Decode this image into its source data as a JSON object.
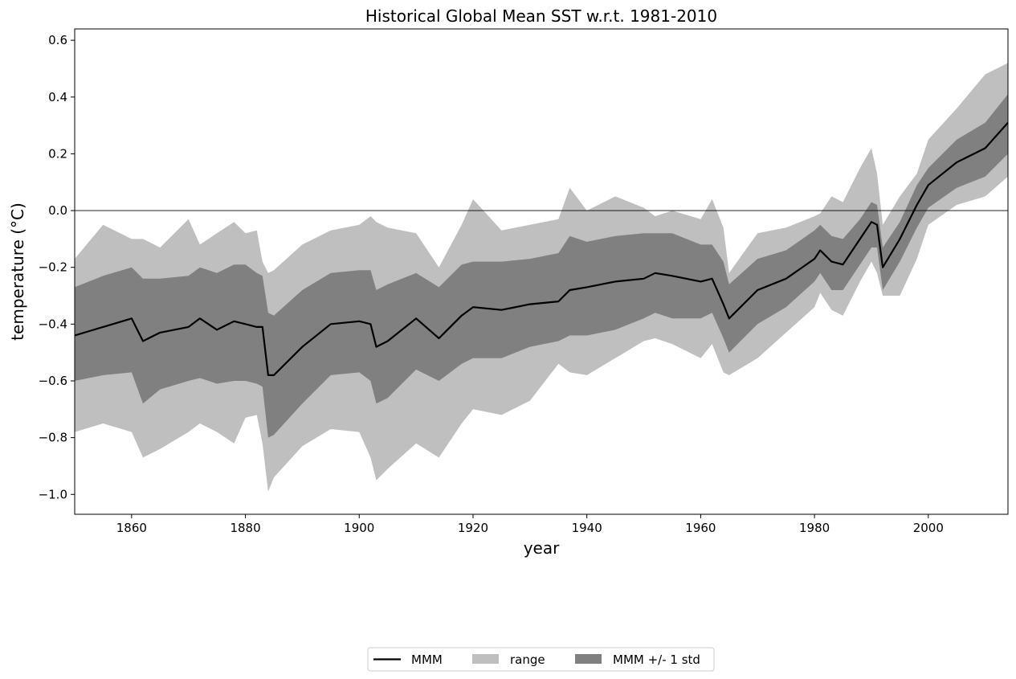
{
  "chart_data": {
    "type": "area",
    "title": "Historical Global Mean SST w.r.t. 1981-2010",
    "xlabel": "year",
    "ylabel": "temperature (°C)",
    "xlim": [
      1850,
      2014
    ],
    "ylim": [
      -1.07,
      0.64
    ],
    "xticks": [
      1860,
      1880,
      1900,
      1920,
      1940,
      1960,
      1980,
      2000
    ],
    "yticks": [
      -1.0,
      -0.8,
      -0.6,
      -0.4,
      -0.2,
      0.0,
      0.2,
      0.4,
      0.6
    ],
    "ytick_labels": [
      "−1.0",
      "−0.8",
      "−0.6",
      "−0.4",
      "−0.2",
      "0.0",
      "0.2",
      "0.4",
      "0.6"
    ],
    "reference_line_y": 0.0,
    "legend": {
      "placement": "bottom-center",
      "entries": [
        {
          "label": "MMM",
          "kind": "line",
          "color": "#000000"
        },
        {
          "label": "range",
          "kind": "patch",
          "color": "#bfbfbf"
        },
        {
          "label": "MMM +/- 1 std",
          "kind": "patch",
          "color": "#808080"
        }
      ]
    },
    "colors": {
      "range": "#bfbfbf",
      "std": "#808080",
      "mmm": "#000000",
      "zero_line": "#000000"
    },
    "x": [
      1850,
      1855,
      1860,
      1862,
      1865,
      1870,
      1872,
      1875,
      1878,
      1880,
      1882,
      1883,
      1884,
      1885,
      1890,
      1895,
      1900,
      1902,
      1903,
      1905,
      1910,
      1914,
      1918,
      1920,
      1925,
      1930,
      1935,
      1937,
      1940,
      1945,
      1950,
      1952,
      1955,
      1960,
      1962,
      1964,
      1965,
      1970,
      1975,
      1980,
      1981,
      1983,
      1985,
      1988,
      1990,
      1991,
      1992,
      1995,
      1998,
      2000,
      2005,
      2010,
      2014
    ],
    "series": [
      {
        "name": "MMM",
        "values": [
          -0.44,
          -0.41,
          -0.38,
          -0.46,
          -0.43,
          -0.41,
          -0.38,
          -0.42,
          -0.39,
          -0.4,
          -0.41,
          -0.41,
          -0.58,
          -0.58,
          -0.48,
          -0.4,
          -0.39,
          -0.4,
          -0.48,
          -0.46,
          -0.38,
          -0.45,
          -0.37,
          -0.34,
          -0.35,
          -0.33,
          -0.32,
          -0.28,
          -0.27,
          -0.25,
          -0.24,
          -0.22,
          -0.23,
          -0.25,
          -0.24,
          -0.33,
          -0.38,
          -0.28,
          -0.24,
          -0.17,
          -0.14,
          -0.18,
          -0.19,
          -0.1,
          -0.04,
          -0.05,
          -0.2,
          -0.1,
          0.02,
          0.09,
          0.17,
          0.22,
          0.31
        ]
      },
      {
        "name": "range",
        "upper": [
          -0.17,
          -0.05,
          -0.1,
          -0.1,
          -0.13,
          -0.03,
          -0.12,
          -0.08,
          -0.04,
          -0.08,
          -0.07,
          -0.18,
          -0.22,
          -0.21,
          -0.12,
          -0.07,
          -0.05,
          -0.02,
          -0.04,
          -0.06,
          -0.08,
          -0.2,
          -0.05,
          0.04,
          -0.07,
          -0.05,
          -0.03,
          0.08,
          0.0,
          0.05,
          0.01,
          -0.02,
          0.0,
          -0.03,
          0.04,
          -0.06,
          -0.22,
          -0.08,
          -0.06,
          -0.02,
          -0.01,
          0.05,
          0.03,
          0.15,
          0.22,
          0.13,
          -0.05,
          0.05,
          0.13,
          0.25,
          0.36,
          0.48,
          0.52
        ],
        "lower": [
          -0.78,
          -0.75,
          -0.78,
          -0.87,
          -0.84,
          -0.78,
          -0.75,
          -0.78,
          -0.82,
          -0.73,
          -0.72,
          -0.82,
          -0.99,
          -0.94,
          -0.83,
          -0.77,
          -0.78,
          -0.87,
          -0.95,
          -0.91,
          -0.82,
          -0.87,
          -0.75,
          -0.7,
          -0.72,
          -0.67,
          -0.54,
          -0.57,
          -0.58,
          -0.52,
          -0.46,
          -0.45,
          -0.47,
          -0.52,
          -0.47,
          -0.57,
          -0.58,
          -0.52,
          -0.43,
          -0.34,
          -0.29,
          -0.35,
          -0.37,
          -0.25,
          -0.18,
          -0.22,
          -0.3,
          -0.3,
          -0.17,
          -0.05,
          0.02,
          0.05,
          0.12
        ]
      },
      {
        "name": "MMM +/- 1 std",
        "upper": [
          -0.27,
          -0.23,
          -0.2,
          -0.24,
          -0.24,
          -0.23,
          -0.2,
          -0.22,
          -0.19,
          -0.19,
          -0.22,
          -0.23,
          -0.36,
          -0.37,
          -0.28,
          -0.22,
          -0.21,
          -0.21,
          -0.28,
          -0.26,
          -0.22,
          -0.27,
          -0.19,
          -0.18,
          -0.18,
          -0.17,
          -0.15,
          -0.09,
          -0.11,
          -0.09,
          -0.08,
          -0.08,
          -0.08,
          -0.12,
          -0.12,
          -0.18,
          -0.26,
          -0.17,
          -0.14,
          -0.07,
          -0.05,
          -0.09,
          -0.1,
          -0.03,
          0.03,
          0.02,
          -0.13,
          -0.04,
          0.09,
          0.15,
          0.25,
          0.31,
          0.41
        ],
        "lower": [
          -0.6,
          -0.58,
          -0.57,
          -0.68,
          -0.63,
          -0.6,
          -0.59,
          -0.61,
          -0.6,
          -0.6,
          -0.61,
          -0.62,
          -0.8,
          -0.79,
          -0.68,
          -0.58,
          -0.57,
          -0.6,
          -0.68,
          -0.66,
          -0.56,
          -0.6,
          -0.54,
          -0.52,
          -0.52,
          -0.48,
          -0.46,
          -0.44,
          -0.44,
          -0.42,
          -0.38,
          -0.36,
          -0.38,
          -0.38,
          -0.36,
          -0.45,
          -0.5,
          -0.4,
          -0.34,
          -0.25,
          -0.22,
          -0.28,
          -0.28,
          -0.19,
          -0.13,
          -0.13,
          -0.28,
          -0.18,
          -0.06,
          0.01,
          0.08,
          0.12,
          0.2
        ]
      }
    ]
  }
}
